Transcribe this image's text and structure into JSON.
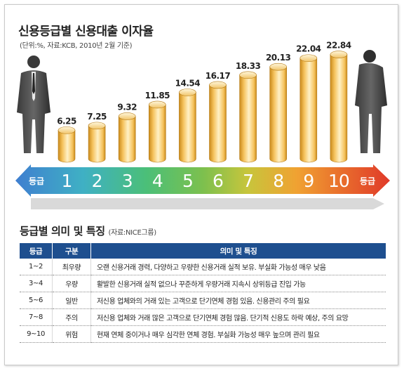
{
  "header": {
    "title": "신용등급별 신용대출 이자율",
    "subtitle": "(단위:%, 자료:KCB, 2010년 2월 기준)"
  },
  "chart_data": {
    "type": "bar",
    "title": "신용등급별 신용대출 이자율",
    "categories": [
      "1",
      "2",
      "3",
      "4",
      "5",
      "6",
      "7",
      "8",
      "9",
      "10"
    ],
    "values": [
      6.25,
      7.25,
      9.32,
      11.85,
      14.54,
      16.17,
      18.33,
      20.13,
      22.04,
      22.84
    ],
    "value_labels": [
      "6.25",
      "7.25",
      "9.32",
      "11.85",
      "14.54",
      "16.17",
      "18.33",
      "20.13",
      "22.04",
      "22.84"
    ],
    "axis_label_left": "등급",
    "axis_label_right": "등급",
    "ylim": [
      0,
      24
    ],
    "colors": {
      "bar_light": "#fff1c6",
      "bar_mid": "#f5c25c",
      "bar_dark": "#c98a1c",
      "arrow": [
        "#3f7fd0",
        "#3fb0c4",
        "#4bbf78",
        "#7cc04e",
        "#c7c53c",
        "#f0a232",
        "#e86a2c",
        "#e03a2a"
      ]
    }
  },
  "table": {
    "title": "등급별 의미 및 특징",
    "source": "(자료:NICE그룹)",
    "headers": [
      "등급",
      "구분",
      "의미 및 특징"
    ],
    "rows": [
      [
        "1~2",
        "최우량",
        "오랜 신용거래 경력, 다양하고 우량한 신용거래 실적 보유. 부실화 가능성 매우 낮음"
      ],
      [
        "3~4",
        "우량",
        "활발한 신용거래 실적 없으나 꾸준하게 우량거래 지속시 상위등급 진입 가능"
      ],
      [
        "5~6",
        "일반",
        "저신용 업체와의 거래 있는 고객으로 단기연체 경험 있음. 신용관리 주의 필요"
      ],
      [
        "7~8",
        "주의",
        "저신용 업체와 거래 많은 고객으로 단기연체 경험 많음. 단기적 신용도 하락 예상, 주의 요망"
      ],
      [
        "9~10",
        "위험",
        "현재 연체 중이거나 매우 심각한 연체 경험. 부실화 가능성 매우 높으며 관리 필요"
      ]
    ]
  }
}
